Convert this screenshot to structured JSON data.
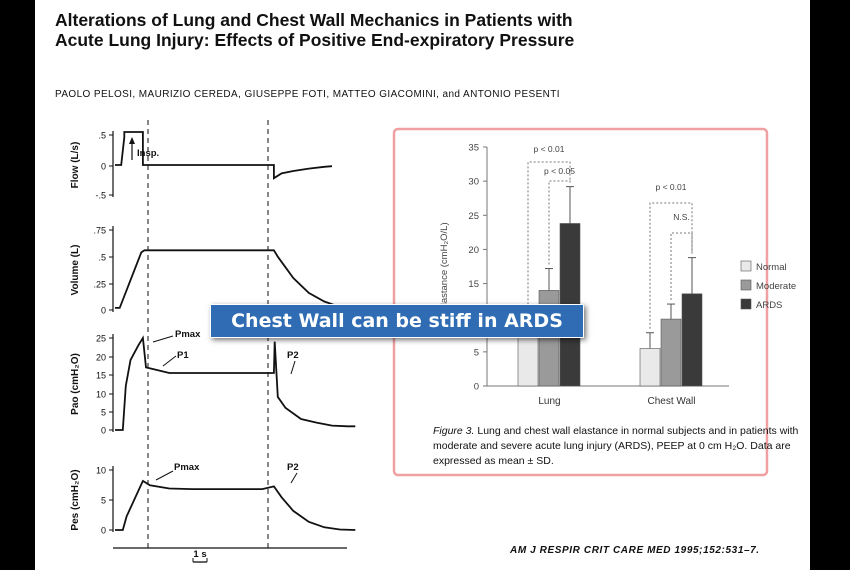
{
  "paper": {
    "title": "Alterations of Lung and Chest Wall Mechanics in Patients with Acute Lung Injury: Effects of Positive End-expiratory Pressure",
    "authors": "PAOLO PELOSI, MAURIZIO CEREDA, GIUSEPPE FOTI, MATTEO GIACOMINI, and ANTONIO PESENTI",
    "citation": "AM J RESPIR CRIT CARE MED 1995;152:531–7.",
    "caption_label": "Figure 3.",
    "caption_text": " Lung and chest wall elastance in normal subjects and in patients with moderate and severe acute lung injury (ARDS), PEEP at 0 cm H₂O. Data are expressed as mean ± SD."
  },
  "banner": {
    "text": "Chest Wall can be stiff in ARDS",
    "color": "#2f6cb3"
  },
  "colors": {
    "highlight_border": "#f0a0a0",
    "normal": "#e9e9e9",
    "moderate": "#9a9a9a",
    "ards": "#3a3a3a"
  },
  "chart_data": [
    {
      "type": "line",
      "ylabel": "Flow (L/s)",
      "y_ticks": [
        ".5",
        "0",
        "-.5"
      ],
      "ylim": [
        -0.5,
        0.5
      ],
      "x": [
        0,
        0.08,
        0.12,
        0.12,
        0.36,
        0.36,
        0.52,
        1.3,
        2.05,
        2.05,
        2.15,
        2.3,
        2.5,
        2.7,
        2.8
      ],
      "y": [
        0,
        0,
        0.46,
        0.55,
        0.55,
        0,
        0,
        0,
        0,
        -0.22,
        -0.14,
        -0.1,
        -0.06,
        -0.03,
        -0.02
      ],
      "annotations": [
        "Insp."
      ]
    },
    {
      "type": "line",
      "ylabel": "Volume (L)",
      "y_ticks": [
        ".75",
        ".5",
        ".25",
        "0"
      ],
      "ylim": [
        0,
        0.75
      ],
      "x": [
        0,
        0.06,
        0.34,
        0.38,
        1.2,
        2.05,
        2.1,
        2.3,
        2.5,
        2.7,
        2.82
      ],
      "y": [
        0.02,
        0.02,
        0.54,
        0.56,
        0.56,
        0.56,
        0.5,
        0.3,
        0.16,
        0.08,
        0.05
      ]
    },
    {
      "type": "line",
      "ylabel": "Pao (cmH₂O)",
      "y_ticks": [
        "25",
        "20",
        "15",
        "10",
        "5",
        "0"
      ],
      "ylim": [
        0,
        25
      ],
      "x": [
        0,
        0.1,
        0.14,
        0.2,
        0.3,
        0.36,
        0.4,
        0.5,
        0.7,
        0.9,
        1.2,
        1.5,
        1.8,
        2.05,
        2.06,
        2.1,
        2.2,
        2.4,
        2.6,
        2.8,
        3.0,
        3.1
      ],
      "y": [
        0,
        0,
        12,
        19,
        23,
        25,
        17,
        16.5,
        15.5,
        15.5,
        15.5,
        15.5,
        15.5,
        15.5,
        24,
        9,
        6,
        3,
        2,
        1.2,
        1,
        1
      ],
      "annotations": [
        "Pmax",
        "P1",
        "P2"
      ]
    },
    {
      "type": "line",
      "ylabel": "Pes (cmH₂O)",
      "y_ticks": [
        "10",
        "5",
        "0"
      ],
      "ylim": [
        0,
        11
      ],
      "x": [
        0,
        0.1,
        0.15,
        0.36,
        0.45,
        0.7,
        1.0,
        1.3,
        1.6,
        1.9,
        2.05,
        2.15,
        2.3,
        2.5,
        2.7,
        2.9,
        3.1
      ],
      "y": [
        0,
        0,
        2.5,
        9,
        8.2,
        7.6,
        7.5,
        7.5,
        7.5,
        7.5,
        8,
        6,
        3.5,
        1.5,
        0.5,
        0.1,
        0
      ],
      "annotations": [
        "Pmax",
        "P2"
      ],
      "xlabel": "1 s"
    },
    {
      "type": "bar",
      "title": "",
      "ylabel": "Elastance (cmH₂O/L)",
      "ylim": [
        0,
        35
      ],
      "y_ticks": [
        "35",
        "30",
        "25",
        "20",
        "15",
        "10",
        "5",
        "0"
      ],
      "categories": [
        "Lung",
        "Chest Wall"
      ],
      "series": [
        {
          "name": "Normal",
          "values": [
            9.5,
            5.5
          ],
          "sd": [
            0.7,
            2.3
          ]
        },
        {
          "name": "Moderate",
          "values": [
            14,
            9.8
          ],
          "sd": [
            3.2,
            2.2
          ]
        },
        {
          "name": "ARDS",
          "values": [
            23.8,
            13.5
          ],
          "sd": [
            5.4,
            5.3
          ]
        }
      ],
      "significance": [
        {
          "group": "Lung",
          "label": "p < 0.01"
        },
        {
          "group": "Lung",
          "label": "p < 0.05"
        },
        {
          "group": "Chest Wall",
          "label": "p < 0.01"
        },
        {
          "group": "Chest Wall",
          "label": "N.S."
        }
      ],
      "legend": "right"
    }
  ]
}
